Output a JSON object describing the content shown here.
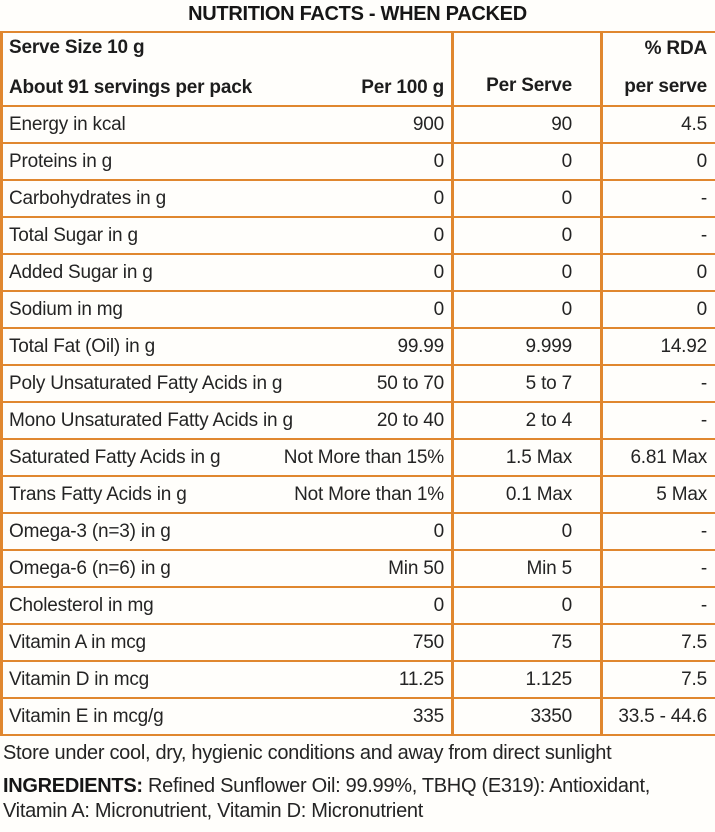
{
  "title": "NUTRITION FACTS - WHEN PACKED",
  "colors": {
    "border_orange": "#e0872f",
    "text_dark": "#242424"
  },
  "table": {
    "header": {
      "serve_size": "Serve Size 10 g",
      "servings": "About 91 servings per pack",
      "col_per_100g": "Per 100 g",
      "col_per_serve": "Per Serve",
      "col_rda_line1": "% RDA",
      "col_rda_line2": "per serve"
    },
    "rows": [
      {
        "label": "Energy in kcal",
        "per_100g": "900",
        "per_serve": "90",
        "rda_per_serve": "4.5"
      },
      {
        "label": "Proteins in g",
        "per_100g": "0",
        "per_serve": "0",
        "rda_per_serve": "0"
      },
      {
        "label": "Carbohydrates in g",
        "per_100g": "0",
        "per_serve": "0",
        "rda_per_serve": "-"
      },
      {
        "label": "Total Sugar in g",
        "per_100g": "0",
        "per_serve": "0",
        "rda_per_serve": "-"
      },
      {
        "label": "Added Sugar in g",
        "per_100g": "0",
        "per_serve": "0",
        "rda_per_serve": "0"
      },
      {
        "label": "Sodium in mg",
        "per_100g": "0",
        "per_serve": "0",
        "rda_per_serve": "0"
      },
      {
        "label": "Total Fat (Oil) in g",
        "per_100g": "99.99",
        "per_serve": "9.999",
        "rda_per_serve": "14.92"
      },
      {
        "label": "Poly Unsaturated Fatty Acids in g",
        "per_100g": "50 to 70",
        "per_serve": "5 to 7",
        "rda_per_serve": "-"
      },
      {
        "label": "Mono Unsaturated Fatty Acids in g",
        "per_100g": "20 to 40",
        "per_serve": "2 to 4",
        "rda_per_serve": "-"
      },
      {
        "label": "Saturated Fatty Acids in g",
        "per_100g": "Not More than 15%",
        "per_serve": "1.5 Max",
        "rda_per_serve": "6.81 Max"
      },
      {
        "label": "Trans Fatty Acids in g",
        "per_100g": "Not More than 1%",
        "per_serve": "0.1 Max",
        "rda_per_serve": "5 Max"
      },
      {
        "label": "Omega-3 (n=3) in g",
        "per_100g": "0",
        "per_serve": "0",
        "rda_per_serve": "-"
      },
      {
        "label": "Omega-6 (n=6) in g",
        "per_100g": "Min 50",
        "per_serve": "Min 5",
        "rda_per_serve": "-"
      },
      {
        "label": "Cholesterol in mg",
        "per_100g": "0",
        "per_serve": "0",
        "rda_per_serve": "-"
      },
      {
        "label": "Vitamin A in mcg",
        "per_100g": "750",
        "per_serve": "75",
        "rda_per_serve": "7.5"
      },
      {
        "label": "Vitamin D in mcg",
        "per_100g": "11.25",
        "per_serve": "1.125",
        "rda_per_serve": "7.5"
      },
      {
        "label": "Vitamin E in mcg/g",
        "per_100g": "335",
        "per_serve": "3350",
        "rda_per_serve": "33.5 - 44.6"
      }
    ]
  },
  "footer": {
    "storage": "Store under cool, dry, hygienic conditions and away from direct sunlight",
    "ingredients_label": "INGREDIENTS:",
    "ingredients_line1": "Refined Sunflower Oil: 99.99%, TBHQ (E319): Antioxidant,",
    "ingredients_line2": "Vitamin A: Micronutrient, Vitamin D: Micronutrient"
  }
}
